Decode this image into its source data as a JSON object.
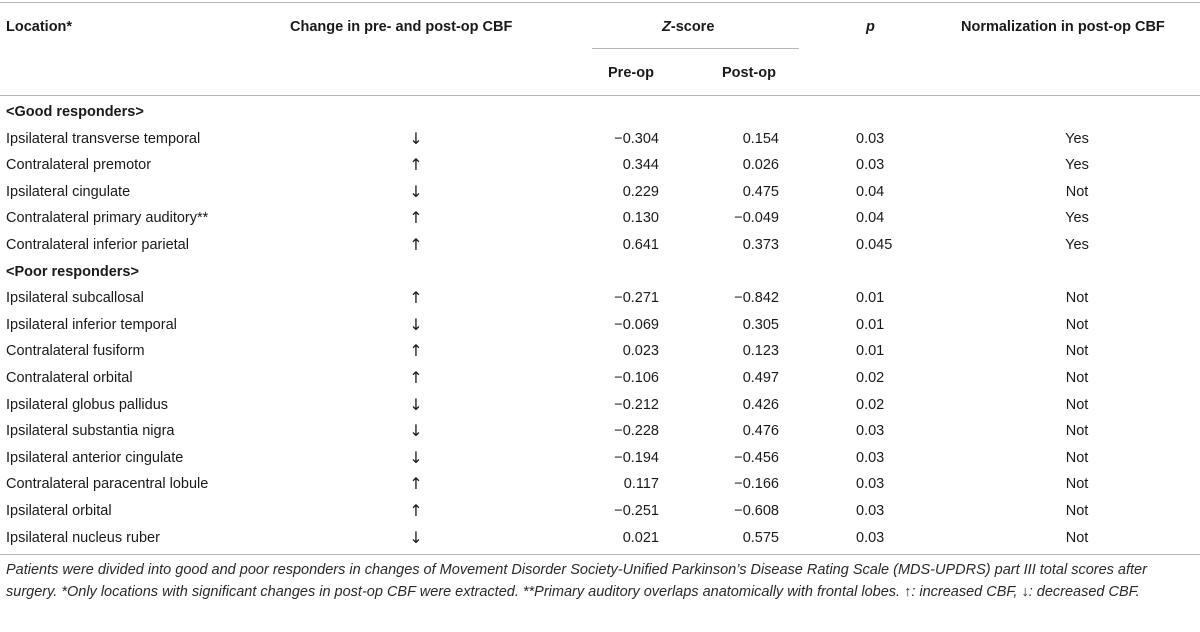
{
  "header": {
    "location": "Location*",
    "change": "Change in pre- and post-op CBF",
    "zscore_z": "Z",
    "zscore_rest": "-score",
    "pre": "Pre-op",
    "post": "Post-op",
    "p": "p",
    "normalization": "Normalization in post-op CBF"
  },
  "groups": [
    {
      "label": "<Good responders>",
      "rows": [
        {
          "location": "Ipsilateral transverse temporal",
          "change": "↓",
          "pre": "−0.304",
          "post": "0.154",
          "p": "0.03",
          "norm": "Yes"
        },
        {
          "location": "Contralateral premotor",
          "change": "↑",
          "pre": "0.344",
          "post": "0.026",
          "p": "0.03",
          "norm": "Yes"
        },
        {
          "location": "Ipsilateral cingulate",
          "change": "↓",
          "pre": "0.229",
          "post": "0.475",
          "p": "0.04",
          "norm": "Not"
        },
        {
          "location": "Contralateral primary auditory**",
          "change": "↑",
          "pre": "0.130",
          "post": "−0.049",
          "p": "0.04",
          "norm": "Yes"
        },
        {
          "location": "Contralateral inferior parietal",
          "change": "↑",
          "pre": "0.641",
          "post": "0.373",
          "p": "0.045",
          "norm": "Yes"
        }
      ]
    },
    {
      "label": "<Poor responders>",
      "rows": [
        {
          "location": "Ipsilateral subcallosal",
          "change": "↑",
          "pre": "−0.271",
          "post": "−0.842",
          "p": "0.01",
          "norm": "Not"
        },
        {
          "location": "Ipsilateral inferior temporal",
          "change": "↓",
          "pre": "−0.069",
          "post": "0.305",
          "p": "0.01",
          "norm": "Not"
        },
        {
          "location": "Contralateral fusiform",
          "change": "↑",
          "pre": "0.023",
          "post": "0.123",
          "p": "0.01",
          "norm": "Not"
        },
        {
          "location": "Contralateral orbital",
          "change": "↑",
          "pre": "−0.106",
          "post": "0.497",
          "p": "0.02",
          "norm": "Not"
        },
        {
          "location": "Ipsilateral globus pallidus",
          "change": "↓",
          "pre": "−0.212",
          "post": "0.426",
          "p": "0.02",
          "norm": "Not"
        },
        {
          "location": "Ipsilateral substantia nigra",
          "change": "↓",
          "pre": "−0.228",
          "post": "0.476",
          "p": "0.03",
          "norm": "Not"
        },
        {
          "location": "Ipsilateral anterior cingulate",
          "change": "↓",
          "pre": "−0.194",
          "post": "−0.456",
          "p": "0.03",
          "norm": "Not"
        },
        {
          "location": "Contralateral paracentral lobule",
          "change": "↑",
          "pre": "0.117",
          "post": "−0.166",
          "p": "0.03",
          "norm": "Not"
        },
        {
          "location": "Ipsilateral orbital",
          "change": "↑",
          "pre": "−0.251",
          "post": "−0.608",
          "p": "0.03",
          "norm": "Not"
        },
        {
          "location": "Ipsilateral nucleus ruber",
          "change": "↓",
          "pre": "0.021",
          "post": "0.575",
          "p": "0.03",
          "norm": "Not"
        }
      ]
    }
  ],
  "footnote": "Patients were divided into good and poor responders in changes of Movement Disorder Society-Unified Parkinson’s Disease Rating Scale (MDS-UPDRS) part III total scores after surgery. *Only locations with significant changes in post-op CBF were extracted. **Primary auditory overlaps anatomically with frontal lobes. ↑: increased CBF, ↓: decreased CBF."
}
